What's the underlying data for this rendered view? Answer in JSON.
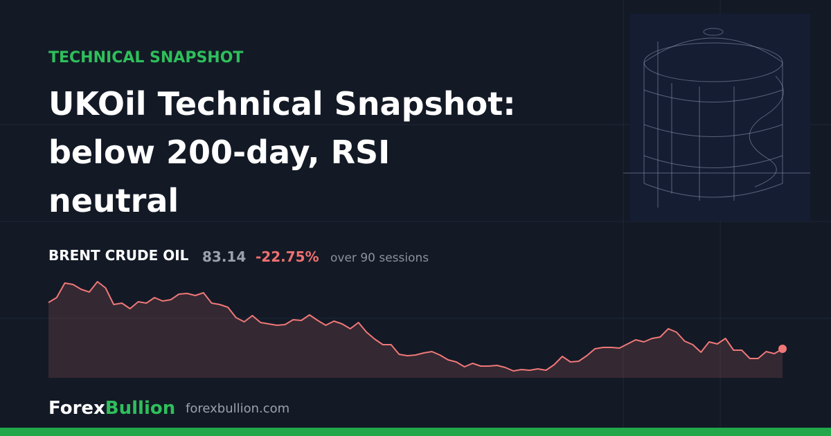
{
  "header": {
    "kicker": "TECHNICAL SNAPSHOT",
    "title_lines": [
      "UKOil Technical Snapshot:",
      "below 200-day, RSI",
      "neutral"
    ]
  },
  "quote": {
    "instrument": "BRENT CRUDE OIL",
    "price": "83.14",
    "change": "-22.75%",
    "period": "over 90 sessions"
  },
  "sparkline": {
    "color": "#f07878",
    "values": [
      107.62,
      110.22,
      117.91,
      117.18,
      114.62,
      113.15,
      118.64,
      115.35,
      106.56,
      107.3,
      104.37,
      108.03,
      107.3,
      110.22,
      108.39,
      109.13,
      112.05,
      112.42,
      111.32,
      112.79,
      107.3,
      106.56,
      105.1,
      99.61,
      97.41,
      100.71,
      97.05,
      96.32,
      95.58,
      95.95,
      98.51,
      98.15,
      101.07,
      98.15,
      95.58,
      97.78,
      96.32,
      93.75,
      97.05,
      91.92,
      88.26,
      85.34,
      85.34,
      80.21,
      79.48,
      79.85,
      80.94,
      81.68,
      79.85,
      77.28,
      76.19,
      73.62,
      75.45,
      73.99,
      73.99,
      74.36,
      73.26,
      71.43,
      72.16,
      71.79,
      72.53,
      71.79,
      74.72,
      79.11,
      76.19,
      76.55,
      79.48,
      83.14,
      83.87,
      83.87,
      83.51,
      85.7,
      87.9,
      86.8,
      88.63,
      89.36,
      93.75,
      91.92,
      87.17,
      85.34,
      81.31,
      86.8,
      85.7,
      88.63,
      82.41,
      82.41,
      78.02,
      78.02,
      81.68,
      80.58,
      83.14
    ]
  },
  "footer": {
    "brand_part1": "Forex",
    "brand_part2": "Bullion",
    "domain": "forexbullion.com"
  }
}
